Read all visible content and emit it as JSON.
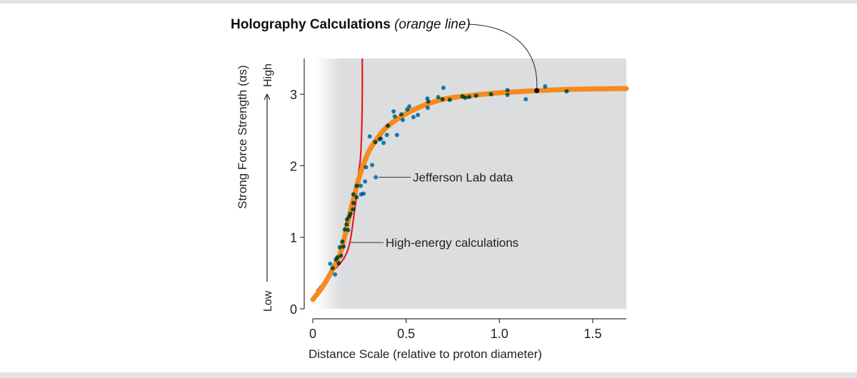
{
  "chart_data": {
    "type": "line",
    "title": "Holography Calculations",
    "title_note": "(orange line)",
    "xlabel": "Distance Scale (relative to proton diameter)",
    "ylabel": "Strong Force Strength (αs)",
    "y_direction_low": "Low",
    "y_direction_high": "High",
    "xlim": [
      -0.046,
      1.68
    ],
    "ylim": [
      0,
      3.5
    ],
    "x_ticks": [
      0,
      0.5,
      1.0,
      1.5
    ],
    "x_tick_labels": [
      "0",
      "0.5",
      "1.0",
      "1.5"
    ],
    "y_ticks": [
      0,
      1,
      2,
      3
    ],
    "y_tick_labels": [
      "0",
      "1",
      "2",
      "3"
    ],
    "grid": false,
    "shaded_region_from_x": 0.15,
    "colors": {
      "holography": "#f58a1f",
      "high_energy": "#e8191f",
      "data": "#1a8cc4",
      "shade": "#dcdddf"
    },
    "series": [
      {
        "name": "Holography Calculations",
        "type": "line",
        "x": [
          0,
          0.05,
          0.1,
          0.15,
          0.2,
          0.25,
          0.3,
          0.35,
          0.4,
          0.5,
          0.6,
          0.7,
          0.8,
          1.0,
          1.2,
          1.4,
          1.68
        ],
        "y": [
          0.13,
          0.3,
          0.52,
          0.8,
          1.35,
          1.85,
          2.2,
          2.4,
          2.55,
          2.73,
          2.85,
          2.93,
          2.97,
          3.02,
          3.05,
          3.07,
          3.08
        ]
      },
      {
        "name": "High-energy calculations",
        "type": "line",
        "x": [
          0.02,
          0.1,
          0.17,
          0.2,
          0.22,
          0.235,
          0.245,
          0.255,
          0.262,
          0.265,
          0.265
        ],
        "y": [
          0.25,
          0.5,
          0.72,
          0.95,
          1.3,
          1.6,
          1.9,
          2.1,
          2.5,
          3.0,
          3.5
        ]
      },
      {
        "name": "Jefferson Lab data",
        "type": "scatter",
        "x": [
          0.093,
          0.106,
          0.119,
          0.123,
          0.131,
          0.139,
          0.144,
          0.152,
          0.158,
          0.165,
          0.171,
          0.183,
          0.181,
          0.19,
          0.195,
          0.202,
          0.215,
          0.218,
          0.217,
          0.235,
          0.235,
          0.257,
          0.259,
          0.272,
          0.28,
          0.285,
          0.318,
          0.337,
          0.305,
          0.335,
          0.359,
          0.365,
          0.379,
          0.397,
          0.402,
          0.451,
          0.433,
          0.439,
          0.474,
          0.482,
          0.506,
          0.517,
          0.539,
          0.563,
          0.614,
          0.618,
          0.616,
          0.672,
          0.7,
          0.695,
          0.734,
          0.802,
          0.817,
          0.838,
          0.875,
          0.955,
          1.043,
          1.043,
          1.141,
          1.245,
          1.36
        ],
        "y": [
          0.63,
          0.57,
          0.48,
          0.69,
          0.72,
          0.64,
          0.86,
          0.74,
          0.94,
          0.87,
          1.11,
          1.25,
          1.18,
          1.1,
          1.29,
          1.33,
          1.39,
          1.48,
          1.6,
          1.56,
          1.72,
          1.72,
          1.6,
          1.61,
          1.78,
          1.98,
          2.01,
          1.84,
          2.41,
          2.33,
          2.37,
          2.38,
          2.32,
          2.43,
          2.56,
          2.43,
          2.76,
          2.69,
          2.72,
          2.64,
          2.79,
          2.83,
          2.68,
          2.71,
          2.94,
          2.9,
          2.81,
          2.96,
          3.09,
          2.93,
          2.92,
          2.97,
          2.95,
          2.96,
          2.98,
          3.0,
          3.06,
          2.99,
          2.93,
          3.11,
          3.04
        ]
      }
    ],
    "annotations": [
      {
        "text": "Jefferson Lab data",
        "x": 0.337,
        "y": 1.84
      },
      {
        "text": "High-energy calculations",
        "x": 0.2,
        "y": 1.0
      },
      {
        "text": "Holography Calculations (orange line)",
        "x": 1.2,
        "y": 3.05
      }
    ]
  }
}
